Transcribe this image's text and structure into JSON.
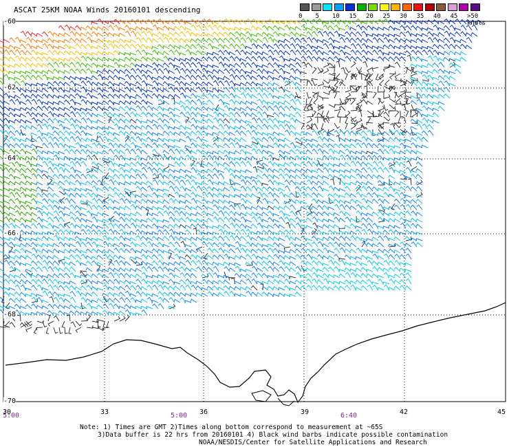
{
  "title": "ASCAT 25KM NOAA Winds 20160101 descending",
  "colorbar": {
    "colors": [
      "#555555",
      "#9a9a9a",
      "#00e5ff",
      "#00a2ff",
      "#0033dd",
      "#00b300",
      "#7cdc00",
      "#ffff00",
      "#ffb300",
      "#ff6600",
      "#ee1111",
      "#b30000",
      "#8b5a3c",
      "#d8a0d8",
      "#b000b0",
      "#5a0a8a"
    ],
    "labels": [
      "0",
      "5",
      "10",
      "15",
      "20",
      "25",
      "30",
      "35",
      "40",
      "45",
      ">50 knots"
    ]
  },
  "axes": {
    "y_labels": [
      "-60",
      "-62",
      "-64",
      "-66",
      "-68",
      "-70"
    ],
    "x_labels": [
      "30",
      "33",
      "36",
      "39",
      "42",
      "45"
    ],
    "time_labels": [
      "5:00",
      "5:00",
      "6:40"
    ]
  },
  "notes": [
    "Note: 1) Times are GMT 2)Times along bottom correspond to measurement at ~65S",
    "3)Data buffer is 22 hrs from 20160101 4) Black wind barbs indicate possible contamination",
    "NOAA/NESDIS/Center for Satellite Applications and Research"
  ]
}
